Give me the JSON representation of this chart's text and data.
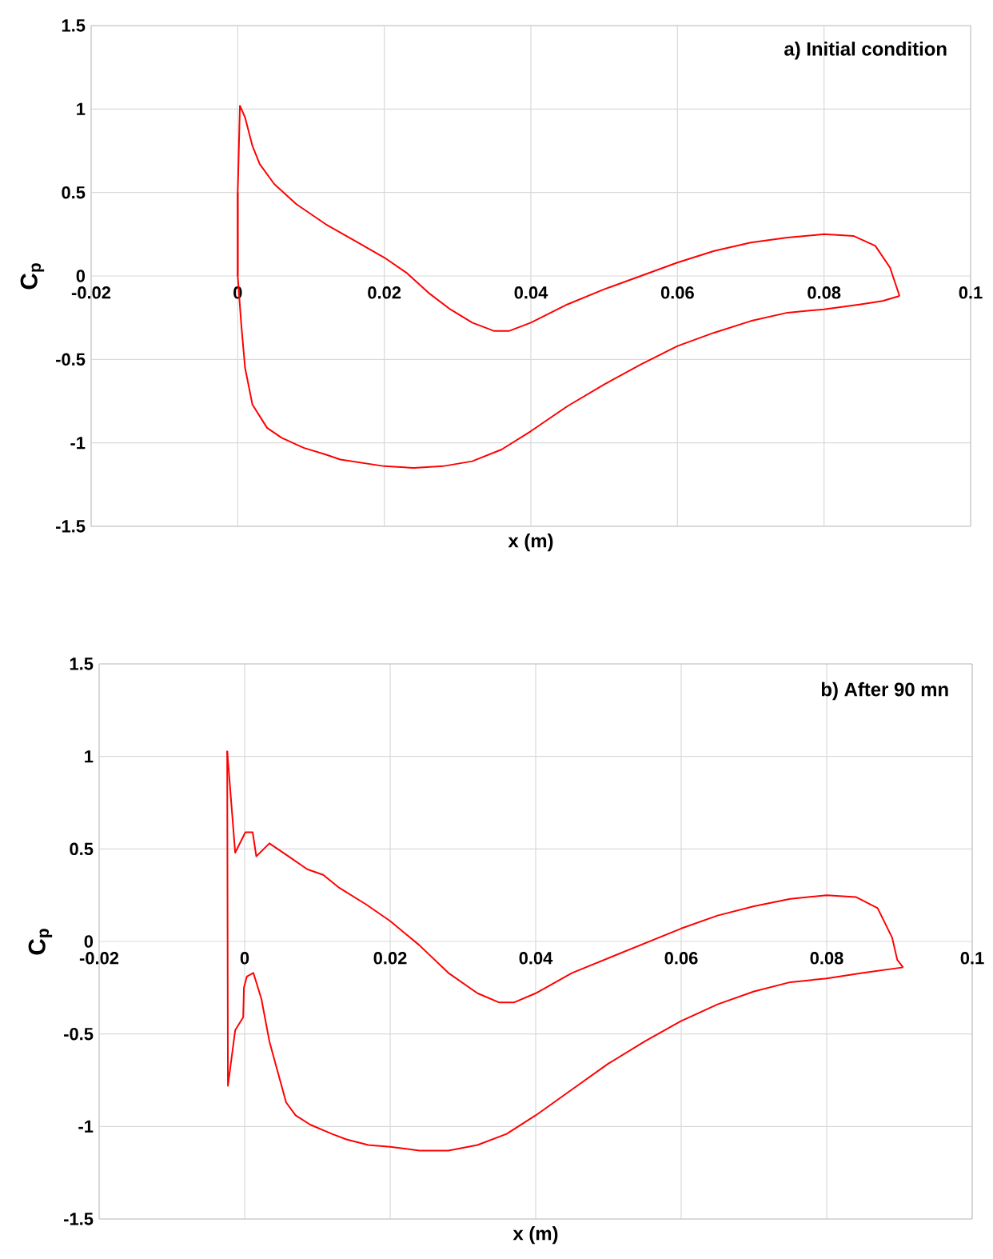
{
  "chart_data": [
    {
      "type": "line",
      "title": "a) Initial condition",
      "xlabel": "x (m)",
      "ylabel": "C$_{p}$",
      "xlim": [
        -0.02,
        0.1
      ],
      "ylim": [
        -1.5,
        1.5
      ],
      "xticks": [
        -0.02,
        0,
        0.02,
        0.04,
        0.06,
        0.08,
        0.1
      ],
      "yticks": [
        -1.5,
        -1,
        -0.5,
        0,
        0.5,
        1,
        1.5
      ],
      "grid": true,
      "series": [
        {
          "color": "#ff0000",
          "x": [
            0.0,
            0.0,
            0.0003,
            0.001,
            0.002,
            0.003,
            0.005,
            0.008,
            0.012,
            0.016,
            0.02,
            0.023,
            0.026,
            0.029,
            0.032,
            0.035,
            0.037,
            0.04,
            0.045,
            0.05,
            0.055,
            0.06,
            0.065,
            0.07,
            0.075,
            0.08,
            0.084,
            0.087,
            0.089,
            0.0903
          ],
          "values": [
            0.0,
            0.5,
            1.02,
            0.95,
            0.78,
            0.67,
            0.55,
            0.43,
            0.31,
            0.21,
            0.11,
            0.02,
            -0.1,
            -0.2,
            -0.28,
            -0.33,
            -0.33,
            -0.28,
            -0.17,
            -0.08,
            0.0,
            0.08,
            0.15,
            0.2,
            0.23,
            0.25,
            0.24,
            0.18,
            0.05,
            -0.12
          ]
        },
        {
          "color": "#ff0000",
          "x": [
            0.0,
            0.0,
            0.0005,
            0.001,
            0.002,
            0.004,
            0.006,
            0.009,
            0.012,
            0.014,
            0.017,
            0.02,
            0.024,
            0.028,
            0.032,
            0.036,
            0.04,
            0.045,
            0.05,
            0.055,
            0.06,
            0.065,
            0.07,
            0.075,
            0.08,
            0.085,
            0.088,
            0.0903
          ],
          "values": [
            0.5,
            0.0,
            -0.3,
            -0.55,
            -0.77,
            -0.91,
            -0.97,
            -1.03,
            -1.07,
            -1.1,
            -1.12,
            -1.14,
            -1.15,
            -1.14,
            -1.11,
            -1.04,
            -0.93,
            -0.78,
            -0.65,
            -0.53,
            -0.42,
            -0.34,
            -0.27,
            -0.22,
            -0.2,
            -0.17,
            -0.15,
            -0.12
          ]
        }
      ]
    },
    {
      "type": "line",
      "title": "b) After 90 mn",
      "xlabel": "x (m)",
      "ylabel": "C$_{p}$",
      "xlim": [
        -0.02,
        0.1
      ],
      "ylim": [
        -1.5,
        1.5
      ],
      "xticks": [
        -0.02,
        0,
        0.02,
        0.04,
        0.06,
        0.08,
        0.1
      ],
      "yticks": [
        -1.5,
        -1,
        -0.5,
        0,
        0.5,
        1,
        1.5
      ],
      "grid": true,
      "series": [
        {
          "color": "#ff0000",
          "x": [
            -0.0024,
            -0.0013,
            0.0001,
            0.0011,
            0.0016,
            0.0034,
            0.0064,
            0.0086,
            0.0108,
            0.013,
            0.0167,
            0.02,
            0.024,
            0.028,
            0.032,
            0.035,
            0.037,
            0.04,
            0.045,
            0.05,
            0.055,
            0.06,
            0.065,
            0.07,
            0.075,
            0.08,
            0.084,
            0.087,
            0.089,
            0.0897,
            0.0905
          ],
          "values": [
            1.03,
            0.48,
            0.59,
            0.59,
            0.46,
            0.53,
            0.45,
            0.39,
            0.36,
            0.29,
            0.2,
            0.11,
            -0.02,
            -0.17,
            -0.28,
            -0.33,
            -0.33,
            -0.28,
            -0.17,
            -0.09,
            -0.01,
            0.07,
            0.14,
            0.19,
            0.23,
            0.25,
            0.24,
            0.18,
            0.02,
            -0.1,
            -0.14
          ]
        },
        {
          "color": "#ff0000",
          "x": [
            -0.0024,
            -0.0023,
            -0.0013,
            -0.0002,
            -0.0001,
            0.0003,
            0.0012,
            0.0023,
            0.0034,
            0.0057,
            0.007,
            0.009,
            0.012,
            0.014,
            0.017,
            0.02,
            0.024,
            0.028,
            0.032,
            0.036,
            0.04,
            0.045,
            0.05,
            0.055,
            0.06,
            0.065,
            0.07,
            0.075,
            0.08,
            0.085,
            0.0905
          ],
          "values": [
            1.03,
            -0.78,
            -0.48,
            -0.41,
            -0.25,
            -0.19,
            -0.17,
            -0.31,
            -0.54,
            -0.87,
            -0.94,
            -0.99,
            -1.04,
            -1.07,
            -1.1,
            -1.11,
            -1.13,
            -1.13,
            -1.1,
            -1.04,
            -0.94,
            -0.8,
            -0.66,
            -0.54,
            -0.43,
            -0.34,
            -0.27,
            -0.22,
            -0.2,
            -0.17,
            -0.14
          ]
        }
      ]
    }
  ]
}
